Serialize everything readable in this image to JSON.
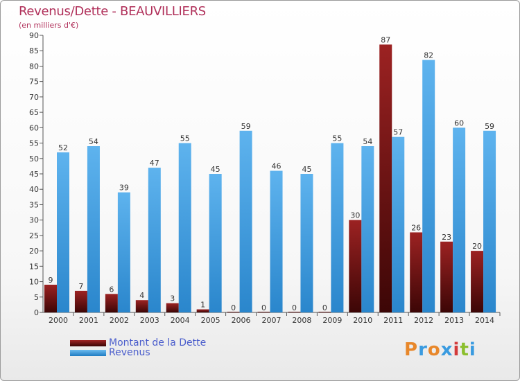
{
  "title": "Revenus/Dette - BEAUVILLIERS",
  "subtitle": "(en milliers d'€)",
  "logo_text": "Proxiti",
  "colors": {
    "debt": "#7a1414",
    "revenue": "#3a9be0",
    "title": "#b0305a",
    "legend_text": "#4a5dcc"
  },
  "legend": [
    {
      "label": "Montant de la Dette",
      "color": "#7a1414"
    },
    {
      "label": "Revenus",
      "color": "#3a9be0"
    }
  ],
  "chart_data": {
    "type": "bar",
    "title": "Revenus/Dette - BEAUVILLIERS",
    "subtitle": "(en milliers d'€)",
    "xlabel": "",
    "ylabel": "",
    "ylim": [
      0,
      90
    ],
    "yticks": [
      0,
      5,
      10,
      15,
      20,
      25,
      30,
      35,
      40,
      45,
      50,
      55,
      60,
      65,
      70,
      75,
      80,
      85,
      90
    ],
    "grid": false,
    "legend_position": "bottom-left",
    "categories": [
      "2000",
      "2001",
      "2002",
      "2003",
      "2004",
      "2005",
      "2006",
      "2007",
      "2008",
      "2009",
      "2010",
      "2011",
      "2012",
      "2013",
      "2014"
    ],
    "series": [
      {
        "name": "Montant de la Dette",
        "values": [
          9,
          7,
          6,
          4,
          3,
          1,
          0,
          0,
          0,
          0,
          30,
          87,
          26,
          23,
          20
        ]
      },
      {
        "name": "Revenus",
        "values": [
          52,
          54,
          39,
          47,
          55,
          45,
          59,
          46,
          45,
          55,
          54,
          57,
          82,
          60,
          59
        ]
      }
    ]
  }
}
